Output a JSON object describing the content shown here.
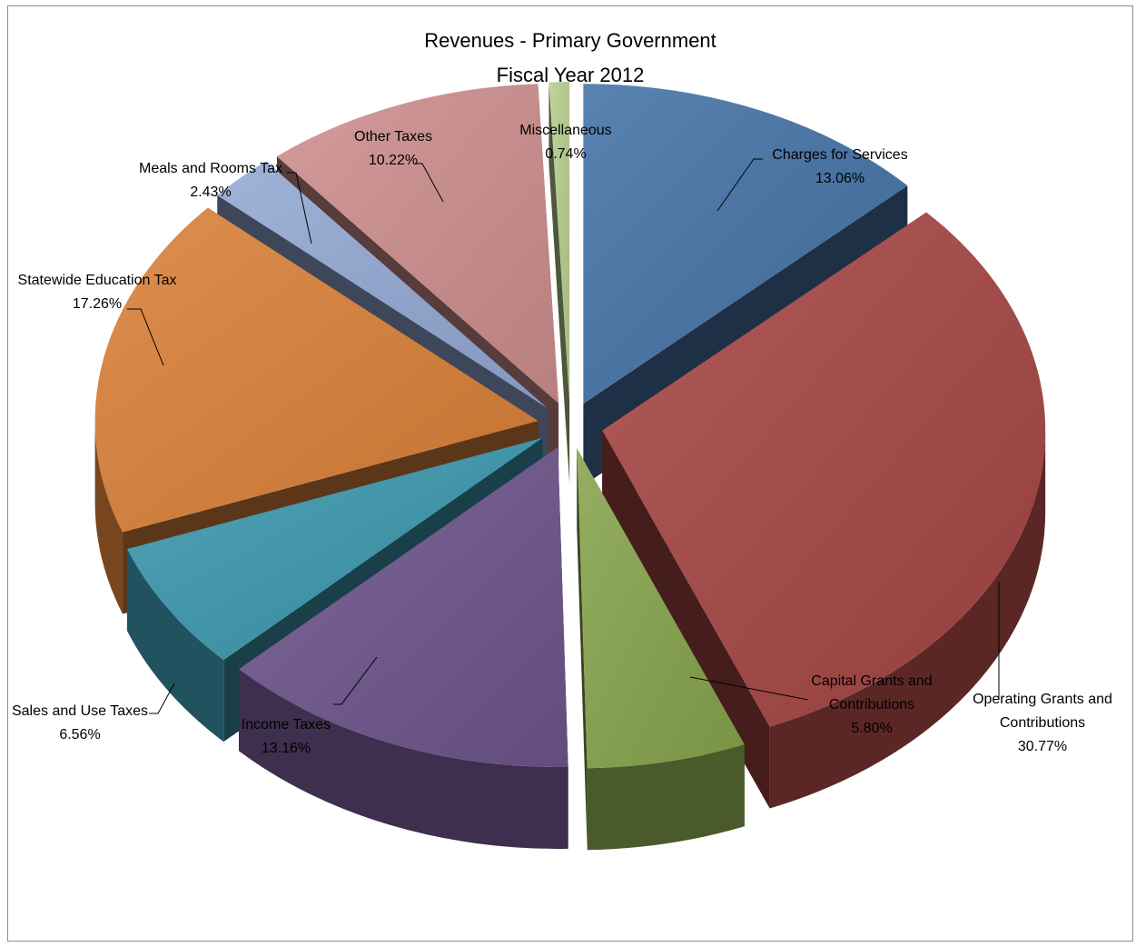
{
  "chart_data": {
    "type": "pie",
    "title": "Revenues - Primary Government",
    "subtitle": "Fiscal Year 2012",
    "slices": [
      {
        "label": "Charges for Services",
        "value_label": "13.06%",
        "value": 13.06,
        "color": "#4472a6"
      },
      {
        "label": "Operating Grants and Contributions",
        "value_label": "30.77%",
        "value": 30.77,
        "color": "#a64644"
      },
      {
        "label": "Capital Grants and Contributions",
        "value_label": "5.80%",
        "value": 5.8,
        "color": "#87a44d"
      },
      {
        "label": "Income Taxes",
        "value_label": "13.16%",
        "value": 13.16,
        "color": "#6e558c"
      },
      {
        "label": "Sales and Use Taxes",
        "value_label": "6.56%",
        "value": 6.56,
        "color": "#3b97ad"
      },
      {
        "label": "Statewide Education Tax",
        "value_label": "17.26%",
        "value": 17.26,
        "color": "#da8038"
      },
      {
        "label": "Meals and Rooms Tax",
        "value_label": "2.43%",
        "value": 2.43,
        "color": "#93a9d4"
      },
      {
        "label": "Other Taxes",
        "value_label": "10.22%",
        "value": 10.22,
        "color": "#ce8e8e"
      },
      {
        "label": "Miscellaneous",
        "value_label": "0.74%",
        "value": 0.74,
        "color": "#b7cf8e"
      }
    ]
  }
}
